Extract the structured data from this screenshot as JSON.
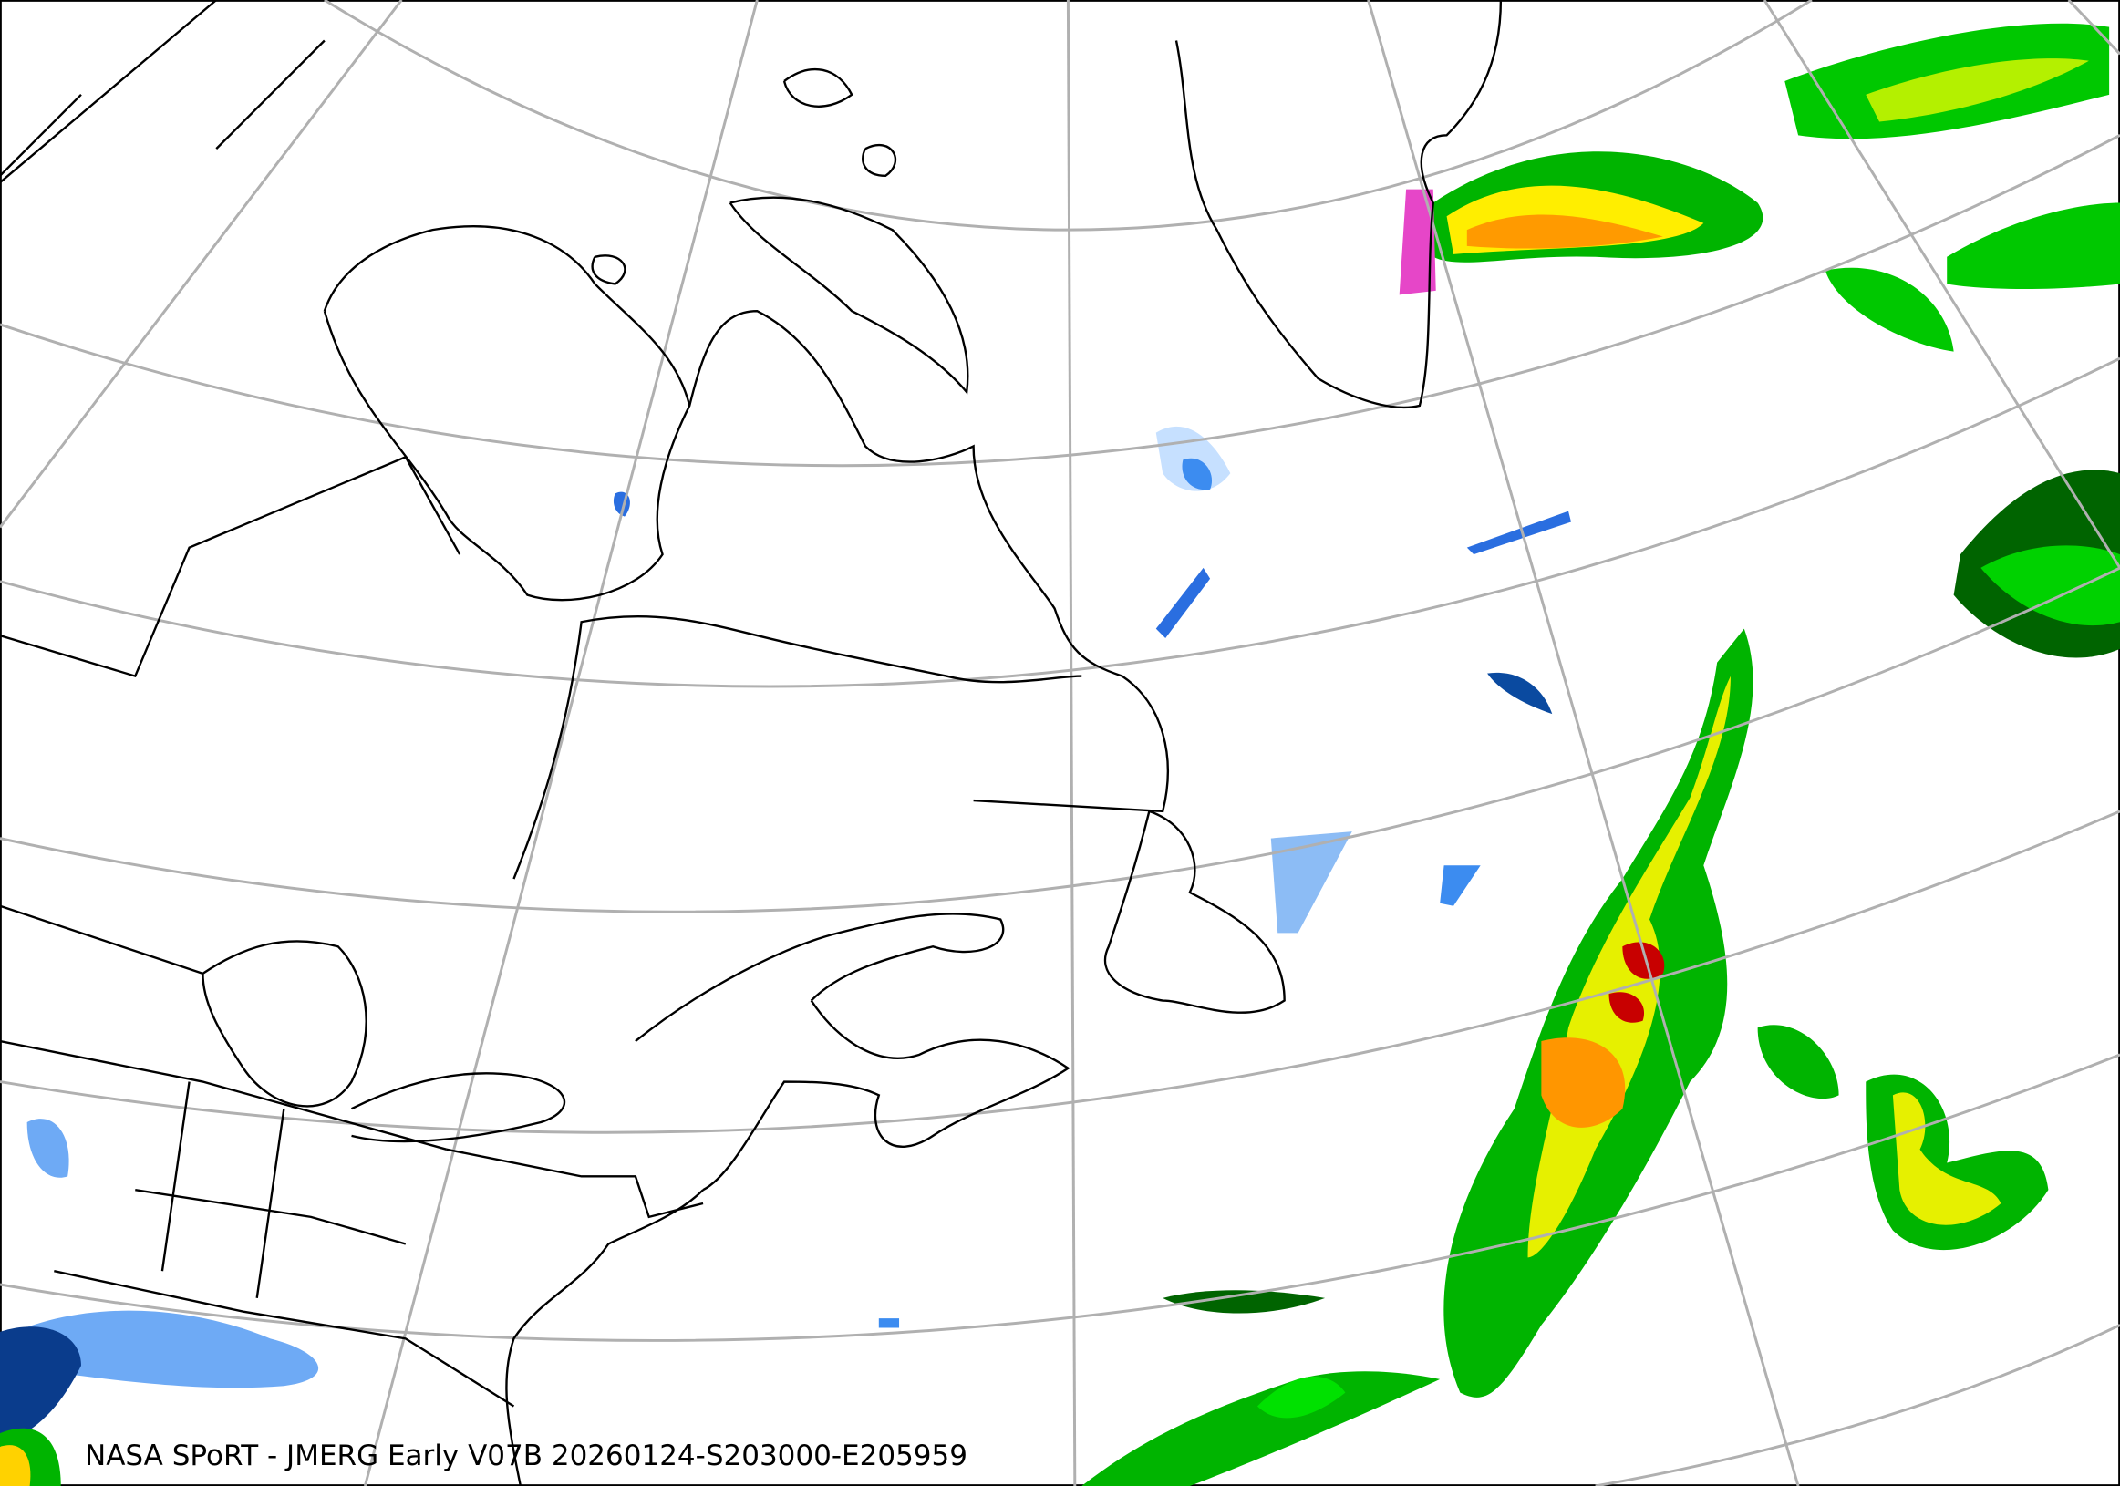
{
  "caption": "NASA SPoRT - JMERG Early V07B 20260124-S203000-E205959",
  "colors": {
    "graticule": "#b0b0b0",
    "coastline": "#000000",
    "precip_light_blue": "#c6e0ff",
    "precip_blue": "#3c8cf0",
    "precip_dark_blue": "#0a3c8c",
    "precip_magenta": "#e646c8",
    "precip_dark_green": "#006400",
    "precip_green": "#00c800",
    "precip_light_green": "#96f000",
    "precip_yellow": "#ffff00",
    "precip_orange": "#ff9600",
    "precip_red": "#e60000"
  }
}
